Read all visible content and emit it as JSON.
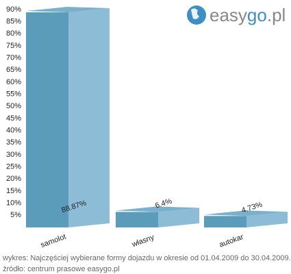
{
  "chart_data": {
    "type": "bar3d",
    "categories": [
      "samolot",
      "własny",
      "autokar"
    ],
    "values": [
      88.87,
      6.4,
      4.73
    ],
    "value_labels": [
      "88.87%",
      "6.4%",
      "4.73%"
    ],
    "color": "#5c9cbb",
    "side_color": "#8dbdd6",
    "top_color": "#7bb0cc",
    "ylim": [
      0,
      90
    ],
    "yticks": [
      {
        "value": 5,
        "label": "5%"
      },
      {
        "value": 10,
        "label": "10%"
      },
      {
        "value": 15,
        "label": "15%"
      },
      {
        "value": 20,
        "label": "20%"
      },
      {
        "value": 25,
        "label": "25%"
      },
      {
        "value": 30,
        "label": "30%"
      },
      {
        "value": 35,
        "label": "35%"
      },
      {
        "value": 40,
        "label": "40%"
      },
      {
        "value": 45,
        "label": "45%"
      },
      {
        "value": 50,
        "label": "50%"
      },
      {
        "value": 55,
        "label": "55%"
      },
      {
        "value": 60,
        "label": "60%"
      },
      {
        "value": 65,
        "label": "65%"
      },
      {
        "value": 70,
        "label": "70%"
      },
      {
        "value": 75,
        "label": "75%"
      },
      {
        "value": 80,
        "label": "80%"
      },
      {
        "value": 85,
        "label": "85%"
      },
      {
        "value": 90,
        "label": "90%"
      }
    ],
    "grid": false,
    "logo": [
      "easy",
      "go",
      ".pl"
    ],
    "caption": [
      "wykres: Najczęściej wybierane formy dojazdu w okresie od 01.04.2009 do 30.04.2009.",
      "źródło: centrum prasowe easygo.pl"
    ]
  }
}
